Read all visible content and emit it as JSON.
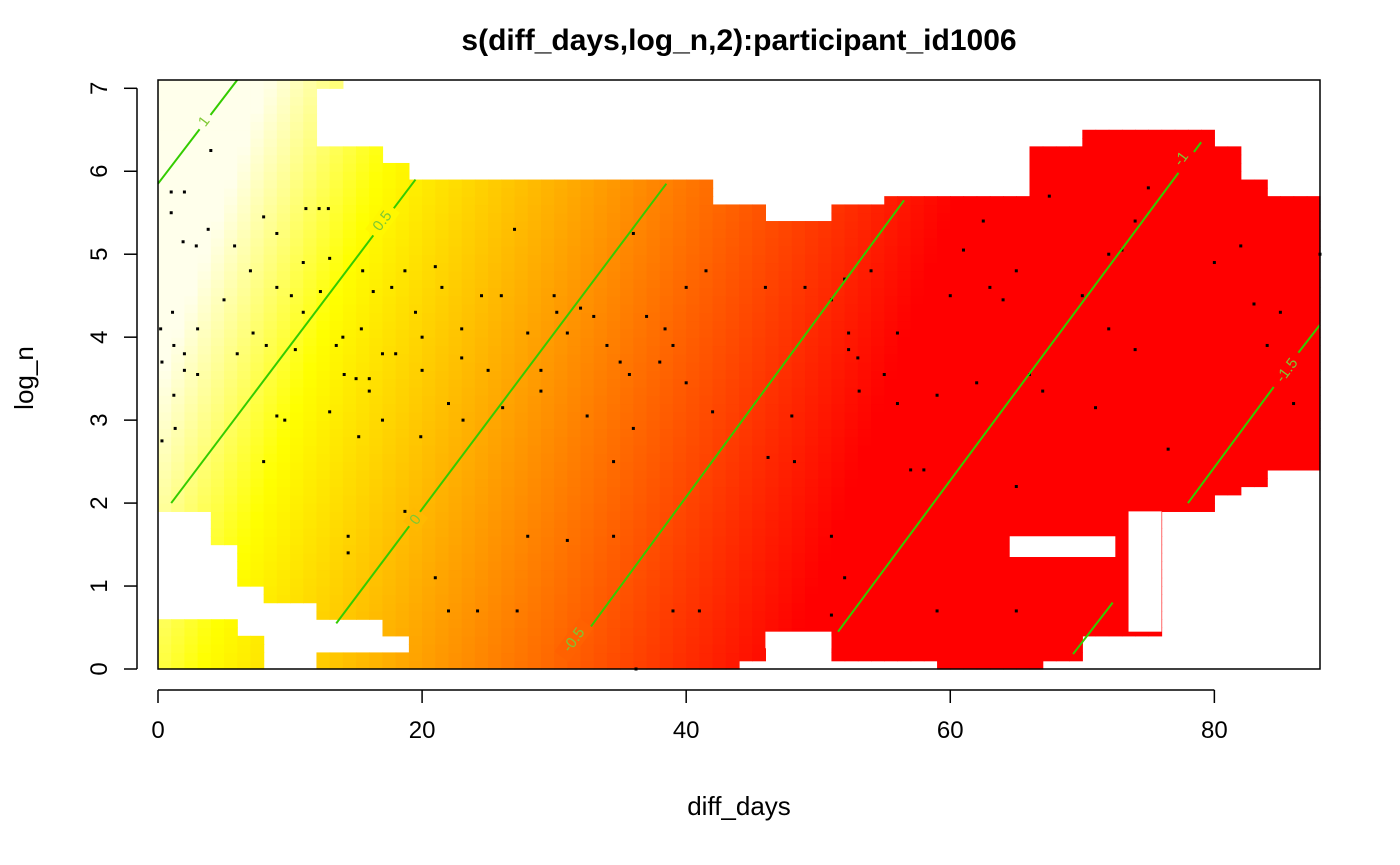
{
  "chart_data": {
    "type": "heatmap",
    "title": "s(diff_days,log_n,2):participant_id1006",
    "xlabel": "diff_days",
    "ylabel": "log_n",
    "xlim": [
      0,
      88
    ],
    "ylim": [
      0,
      7.1
    ],
    "x_ticks": [
      0,
      20,
      40,
      60,
      80
    ],
    "y_ticks": [
      0,
      1,
      2,
      3,
      4,
      5,
      6,
      7
    ],
    "surface": {
      "model": "linear",
      "value_at_origin": 0.7,
      "slope_x": -0.0515,
      "slope_y": 0.1166,
      "color_min": -1.75,
      "color_max": 1.1,
      "color_scheme": "heat"
    },
    "contour_color": "#33cc00",
    "contours": [
      {
        "level": 1,
        "label": "1",
        "segments": [
          [
            [
              0,
              5.85
            ],
            [
              6,
              7.1
            ]
          ]
        ],
        "label_at": [
          3.5,
          6.6
        ]
      },
      {
        "level": 0.5,
        "label": "0.5",
        "segments": [
          [
            [
              1,
              2.0
            ],
            [
              19.5,
              5.9
            ]
          ]
        ],
        "label_at": [
          17,
          5.4
        ]
      },
      {
        "level": 0,
        "label": "0",
        "segments": [
          [
            [
              13.5,
              0.55
            ],
            [
              38.5,
              5.85
            ]
          ]
        ],
        "label_at": [
          19.5,
          1.8
        ]
      },
      {
        "level": -0.5,
        "label": "-0.5",
        "segments": [
          [
            [
              32.5,
              0.45
            ],
            [
              56.5,
              5.65
            ]
          ]
        ],
        "label_at": [
          31.5,
          0.35
        ]
      },
      {
        "level": -1,
        "label": "-1",
        "segments": [
          [
            [
              51.5,
              0.45
            ],
            [
              79.0,
              6.35
            ]
          ]
        ],
        "label_at": [
          77.5,
          6.15
        ]
      },
      {
        "level": -1.5,
        "label": "-1.5",
        "segments": [
          [
            [
              78.0,
              2.0
            ],
            [
              84.5,
              3.4
            ]
          ],
          [
            [
              86.3,
              3.8
            ],
            [
              88,
              4.15
            ]
          ]
        ],
        "label_at": [
          85.5,
          3.6
        ]
      },
      {
        "level": -1.5,
        "label": "",
        "segments": [
          [
            [
              69.3,
              0.18
            ],
            [
              72.3,
              0.8
            ]
          ]
        ],
        "label_at": null
      }
    ],
    "covered_region": [
      {
        "x": [
          0,
          2
        ],
        "y": [
          1.9,
          6.6
        ]
      },
      {
        "x": [
          0,
          12
        ],
        "y": [
          6.6,
          7.1
        ]
      },
      {
        "x": [
          12,
          14
        ],
        "y": [
          6.98,
          7.1
        ]
      },
      {
        "x": [
          2,
          4
        ],
        "y": [
          1.9,
          6.6
        ]
      },
      {
        "x": [
          4,
          6
        ],
        "y": [
          1.55,
          6.6
        ]
      },
      {
        "x": [
          6,
          8
        ],
        "y": [
          1.0,
          6.6
        ]
      },
      {
        "x": [
          8,
          10
        ],
        "y": [
          0.85,
          6.6
        ]
      },
      {
        "x": [
          10,
          12
        ],
        "y": [
          0.85,
          6.6
        ]
      },
      {
        "x": [
          12,
          14
        ],
        "y": [
          0.65,
          6.25
        ]
      },
      {
        "x": [
          14,
          17
        ],
        "y": [
          0.65,
          6.25
        ]
      },
      {
        "x": [
          17,
          19
        ],
        "y": [
          0.45,
          6.08
        ]
      },
      {
        "x": [
          19,
          40
        ],
        "y": [
          0.25,
          5.9
        ]
      },
      {
        "x": [
          12,
          19
        ],
        "y": [
          0.0,
          0.25
        ]
      },
      {
        "x": [
          19,
          44
        ],
        "y": [
          0.0,
          0.25
        ]
      },
      {
        "x": [
          40,
          42
        ],
        "y": [
          0.25,
          5.9
        ]
      },
      {
        "x": [
          42,
          46
        ],
        "y": [
          0.25,
          5.55
        ]
      },
      {
        "x": [
          46,
          51
        ],
        "y": [
          0.45,
          5.35
        ]
      },
      {
        "x": [
          44,
          46
        ],
        "y": [
          0.1,
          0.25
        ]
      },
      {
        "x": [
          51,
          55
        ],
        "y": [
          0.1,
          5.55
        ]
      },
      {
        "x": [
          55,
          66
        ],
        "y": [
          0.1,
          5.7
        ]
      },
      {
        "x": [
          66,
          70
        ],
        "y": [
          0.1,
          6.25
        ]
      },
      {
        "x": [
          70,
          76
        ],
        "y": [
          0.45,
          6.45
        ]
      },
      {
        "x": [
          76,
          80
        ],
        "y": [
          1.9,
          6.45
        ]
      },
      {
        "x": [
          80,
          82
        ],
        "y": [
          2.1,
          6.25
        ]
      },
      {
        "x": [
          82,
          84
        ],
        "y": [
          2.25,
          5.9
        ]
      },
      {
        "x": [
          84,
          88
        ],
        "y": [
          2.45,
          5.7
        ]
      },
      {
        "x": [
          0,
          6
        ],
        "y": [
          0.0,
          0.62
        ]
      },
      {
        "x": [
          6,
          8
        ],
        "y": [
          0.0,
          0.45
        ]
      },
      {
        "x": [
          59,
          62
        ],
        "y": [
          0.0,
          0.1
        ]
      },
      {
        "x": [
          62,
          67
        ],
        "y": [
          0.0,
          0.1
        ]
      }
    ],
    "uncovered_region": [
      {
        "x": [
          64.5,
          72.5
        ],
        "y": [
          1.35,
          1.6
        ]
      },
      {
        "x": [
          73.5,
          76
        ],
        "y": [
          0.45,
          1.9
        ]
      },
      {
        "x": [
          46,
          51
        ],
        "y": [
          0.25,
          0.45
        ]
      }
    ],
    "data_points": [
      [
        0.2,
        4.1
      ],
      [
        0.3,
        3.7
      ],
      [
        0.3,
        2.75
      ],
      [
        1.0,
        5.5
      ],
      [
        1.1,
        4.3
      ],
      [
        1.2,
        3.9
      ],
      [
        1.2,
        3.3
      ],
      [
        1.3,
        2.9
      ],
      [
        1.0,
        5.75
      ],
      [
        1.9,
        5.15
      ],
      [
        2.0,
        5.75
      ],
      [
        2.0,
        3.8
      ],
      [
        2.0,
        3.6
      ],
      [
        2.9,
        5.1
      ],
      [
        3.0,
        4.1
      ],
      [
        3.0,
        3.55
      ],
      [
        3.8,
        5.3
      ],
      [
        4.0,
        6.25
      ],
      [
        5.0,
        4.45
      ],
      [
        5.8,
        5.1
      ],
      [
        6.0,
        3.8
      ],
      [
        7.0,
        4.8
      ],
      [
        7.2,
        4.05
      ],
      [
        8.0,
        5.45
      ],
      [
        8.2,
        3.9
      ],
      [
        8.0,
        2.5
      ],
      [
        9.0,
        5.25
      ],
      [
        9.0,
        4.6
      ],
      [
        9.0,
        3.05
      ],
      [
        9.6,
        3.0
      ],
      [
        10.1,
        4.5
      ],
      [
        10.4,
        3.85
      ],
      [
        11.0,
        4.3
      ],
      [
        11.0,
        4.9
      ],
      [
        11.2,
        5.55
      ],
      [
        12.2,
        5.55
      ],
      [
        12.3,
        4.55
      ],
      [
        12.9,
        5.55
      ],
      [
        13.0,
        4.95
      ],
      [
        13.0,
        3.1
      ],
      [
        13.5,
        3.9
      ],
      [
        14.0,
        4.0
      ],
      [
        14.1,
        3.55
      ],
      [
        14.4,
        1.6
      ],
      [
        14.4,
        1.4
      ],
      [
        15.0,
        3.5
      ],
      [
        15.2,
        2.8
      ],
      [
        15.4,
        4.1
      ],
      [
        15.5,
        4.8
      ],
      [
        16.0,
        3.5
      ],
      [
        16.0,
        3.35
      ],
      [
        16.3,
        4.55
      ],
      [
        17.0,
        3.8
      ],
      [
        17.0,
        3.0
      ],
      [
        17.7,
        4.6
      ],
      [
        18.0,
        3.8
      ],
      [
        18.7,
        4.8
      ],
      [
        18.7,
        1.9
      ],
      [
        19.5,
        4.3
      ],
      [
        20.0,
        4.0
      ],
      [
        19.9,
        2.8
      ],
      [
        20.0,
        3.6
      ],
      [
        21.0,
        4.85
      ],
      [
        21.0,
        1.1
      ],
      [
        21.5,
        4.6
      ],
      [
        22.0,
        3.2
      ],
      [
        22.0,
        0.7
      ],
      [
        23.0,
        4.1
      ],
      [
        23.0,
        3.75
      ],
      [
        23.1,
        3.0
      ],
      [
        24.2,
        0.7
      ],
      [
        24.5,
        4.5
      ],
      [
        25.0,
        3.6
      ],
      [
        26.0,
        4.5
      ],
      [
        26.1,
        3.15
      ],
      [
        27.0,
        5.3
      ],
      [
        27.2,
        0.7
      ],
      [
        28.0,
        4.05
      ],
      [
        28.0,
        1.6
      ],
      [
        29.0,
        3.6
      ],
      [
        29.0,
        3.35
      ],
      [
        30.0,
        4.5
      ],
      [
        30.2,
        4.3
      ],
      [
        31.0,
        4.05
      ],
      [
        31.0,
        1.55
      ],
      [
        32.0,
        4.35
      ],
      [
        32.5,
        3.05
      ],
      [
        33.0,
        4.25
      ],
      [
        34.0,
        3.9
      ],
      [
        34.5,
        2.5
      ],
      [
        34.5,
        1.6
      ],
      [
        35.0,
        3.7
      ],
      [
        35.7,
        3.55
      ],
      [
        36.0,
        5.25
      ],
      [
        36.0,
        2.9
      ],
      [
        36.2,
        0.0
      ],
      [
        37.0,
        4.25
      ],
      [
        38.0,
        3.7
      ],
      [
        38.4,
        4.1
      ],
      [
        39.0,
        3.9
      ],
      [
        39.0,
        0.7
      ],
      [
        40.0,
        4.6
      ],
      [
        40.0,
        3.45
      ],
      [
        41.0,
        0.7
      ],
      [
        41.5,
        4.8
      ],
      [
        42.0,
        3.1
      ],
      [
        46.0,
        4.6
      ],
      [
        46.2,
        2.55
      ],
      [
        48.0,
        3.05
      ],
      [
        48.2,
        2.5
      ],
      [
        49.0,
        4.6
      ],
      [
        51.0,
        4.45
      ],
      [
        51.0,
        1.6
      ],
      [
        51.0,
        0.65
      ],
      [
        52.0,
        4.7
      ],
      [
        52.0,
        1.1
      ],
      [
        52.3,
        4.05
      ],
      [
        52.3,
        3.85
      ],
      [
        53.0,
        3.75
      ],
      [
        53.1,
        3.35
      ],
      [
        54.0,
        4.8
      ],
      [
        55.0,
        3.55
      ],
      [
        56.0,
        4.05
      ],
      [
        56.0,
        3.2
      ],
      [
        57.0,
        2.4
      ],
      [
        58.0,
        2.4
      ],
      [
        59.0,
        3.3
      ],
      [
        59.0,
        0.7
      ],
      [
        60.0,
        4.5
      ],
      [
        61.0,
        5.05
      ],
      [
        62.0,
        3.45
      ],
      [
        62.5,
        5.4
      ],
      [
        63.0,
        4.6
      ],
      [
        64.0,
        4.45
      ],
      [
        65.0,
        4.8
      ],
      [
        65.0,
        2.2
      ],
      [
        65.0,
        0.7
      ],
      [
        66.0,
        3.55
      ],
      [
        67.0,
        3.35
      ],
      [
        67.5,
        5.7
      ],
      [
        70.0,
        4.5
      ],
      [
        71.0,
        3.15
      ],
      [
        72.0,
        4.1
      ],
      [
        72.0,
        5.0
      ],
      [
        73.0,
        5.05
      ],
      [
        74.0,
        5.4
      ],
      [
        74.0,
        3.85
      ],
      [
        75.0,
        5.8
      ],
      [
        76.5,
        2.65
      ],
      [
        80.0,
        4.9
      ],
      [
        82.0,
        5.1
      ],
      [
        83.0,
        4.4
      ],
      [
        84.0,
        3.9
      ],
      [
        85.0,
        4.3
      ],
      [
        86.0,
        3.2
      ],
      [
        88.0,
        5.0
      ]
    ]
  }
}
